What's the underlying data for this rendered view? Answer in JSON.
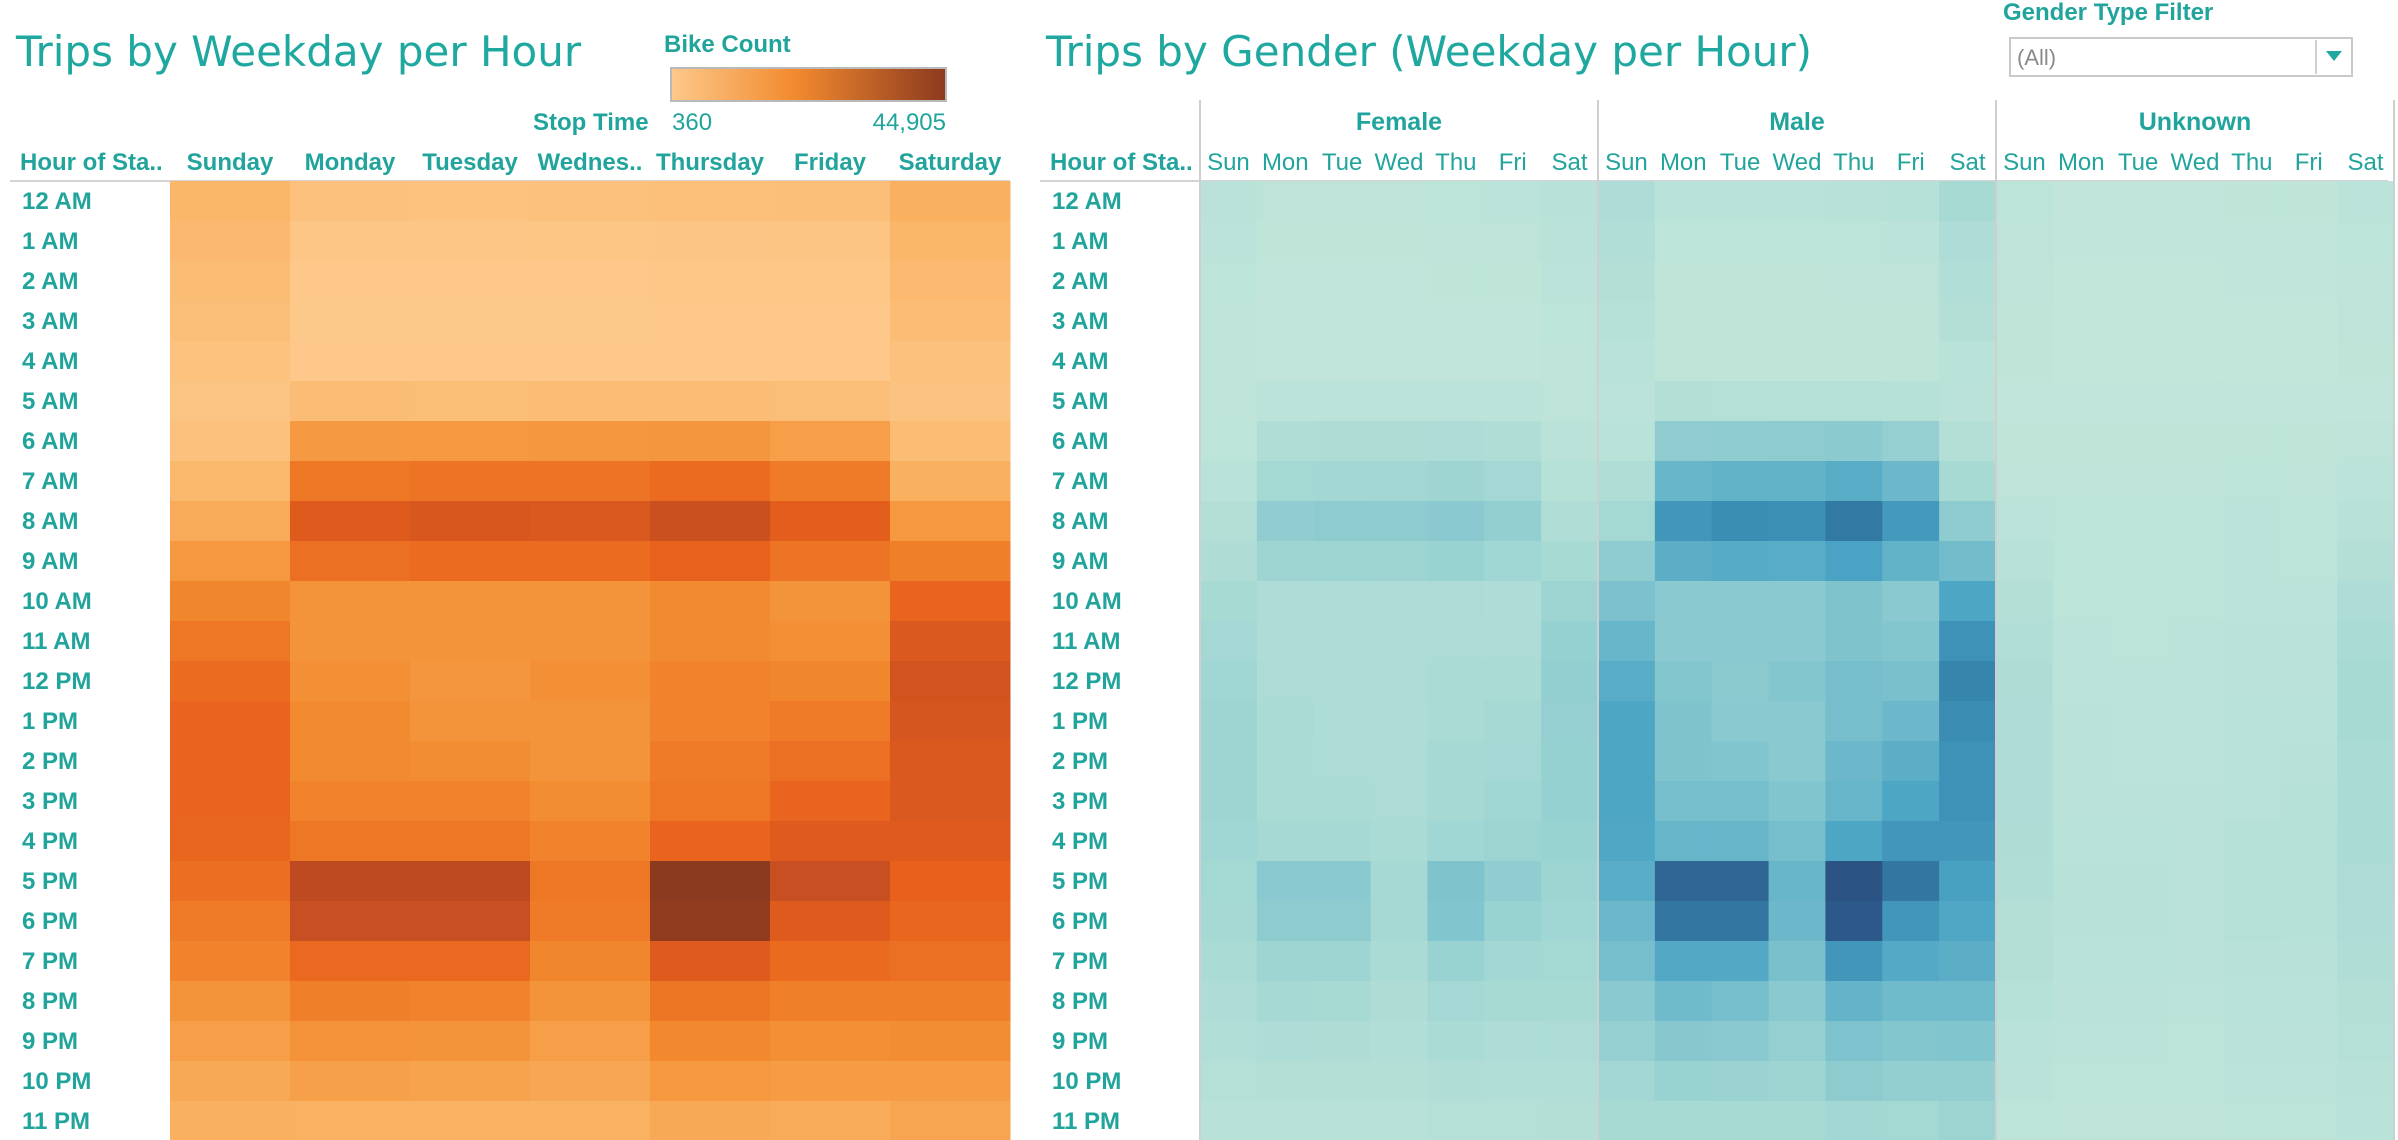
{
  "left_chart": {
    "title": "Trips by Weekday per Hour",
    "legend": {
      "title": "Bike Count",
      "min_label": "360",
      "max_label": "44,905",
      "min_color": "#fdc98b",
      "max_color": "#8c3a1f"
    },
    "column_field_label": "Stop Time",
    "row_header": "Hour of Sta..",
    "column_headers": [
      "Sunday",
      "Monday",
      "Tuesday",
      "Wednes..",
      "Thursday",
      "Friday",
      "Saturday"
    ]
  },
  "right_chart": {
    "title": "Trips by Gender (Weekday per Hour)",
    "row_header": "Hour of Sta..",
    "groups": [
      "Female",
      "Male",
      "Unknown"
    ],
    "day_headers": [
      "Sun",
      "Mon",
      "Tue",
      "Wed",
      "Thu",
      "Fri",
      "Sat"
    ],
    "color_low": "#c2e6da",
    "color_high": "#2b5384"
  },
  "filter": {
    "label": "Gender Type Filter",
    "value": "(All)"
  },
  "colors": {
    "teal_text": "#21a49c",
    "orange_low": "#fdc98b",
    "orange_high": "#8c3a1f"
  },
  "chart_data": [
    {
      "type": "heatmap",
      "title": "Trips by Weekday per Hour",
      "x_label": "Stop Time",
      "y_label": "Hour of Sta..",
      "x": [
        "Sunday",
        "Monday",
        "Tuesday",
        "Wednes..",
        "Thursday",
        "Friday",
        "Saturday"
      ],
      "y": [
        "12 AM",
        "1 AM",
        "2 AM",
        "3 AM",
        "4 AM",
        "5 AM",
        "6 AM",
        "7 AM",
        "8 AM",
        "9 AM",
        "10 AM",
        "11 AM",
        "12 PM",
        "1 PM",
        "2 PM",
        "3 PM",
        "4 PM",
        "5 PM",
        "6 PM",
        "7 PM",
        "8 PM",
        "9 PM",
        "10 PM",
        "11 PM"
      ],
      "color_legend": "Bike Count",
      "color_range": [
        360,
        44905
      ],
      "values": [
        [
          6500,
          2800,
          2600,
          2900,
          3300,
          3600,
          8000
        ],
        [
          5500,
          1300,
          1200,
          1400,
          1500,
          1700,
          6200
        ],
        [
          4600,
          800,
          700,
          800,
          900,
          1000,
          5200
        ],
        [
          3800,
          500,
          450,
          500,
          560,
          620,
          4300
        ],
        [
          2600,
          700,
          650,
          700,
          720,
          780,
          2900
        ],
        [
          2000,
          4200,
          4000,
          4100,
          4100,
          3800,
          2300
        ],
        [
          2800,
          13500,
          14000,
          14200,
          14500,
          12500,
          4500
        ],
        [
          5800,
          22000,
          23000,
          23000,
          25000,
          21000,
          8000
        ],
        [
          9500,
          30000,
          31500,
          31000,
          34500,
          29000,
          14000
        ],
        [
          14000,
          24000,
          25000,
          25000,
          27500,
          23000,
          20000
        ],
        [
          18000,
          15000,
          15000,
          15000,
          17000,
          15000,
          27000
        ],
        [
          22000,
          15000,
          15000,
          15000,
          17000,
          16000,
          31000
        ],
        [
          25000,
          16000,
          14500,
          16000,
          19000,
          18000,
          33000
        ],
        [
          27000,
          17000,
          15000,
          15000,
          19000,
          21000,
          32000
        ],
        [
          27000,
          17000,
          16500,
          15000,
          21000,
          24000,
          31000
        ],
        [
          27000,
          19000,
          19000,
          16500,
          22000,
          27000,
          31000
        ],
        [
          26500,
          22000,
          22000,
          19000,
          27000,
          30000,
          30000
        ],
        [
          24500,
          37000,
          37000,
          22000,
          44905,
          35000,
          28000
        ],
        [
          21000,
          35000,
          35000,
          21000,
          44000,
          30000,
          26500
        ],
        [
          19000,
          26000,
          26000,
          18000,
          30000,
          25500,
          24000
        ],
        [
          15000,
          20000,
          19000,
          15000,
          22500,
          20000,
          20000
        ],
        [
          12500,
          15500,
          15000,
          12500,
          17500,
          16000,
          16500
        ],
        [
          10000,
          12000,
          11500,
          10500,
          14000,
          13000,
          13000
        ],
        [
          8000,
          7800,
          7800,
          7700,
          10000,
          9500,
          11000
        ]
      ]
    },
    {
      "type": "heatmap",
      "title": "Trips by Gender (Weekday per Hour)",
      "y_label": "Hour of Sta..",
      "groups": [
        "Female",
        "Male",
        "Unknown"
      ],
      "x": [
        "Sun",
        "Mon",
        "Tue",
        "Wed",
        "Thu",
        "Fri",
        "Sat"
      ],
      "y": [
        "12 AM",
        "1 AM",
        "2 AM",
        "3 AM",
        "4 AM",
        "5 AM",
        "6 AM",
        "7 AM",
        "8 AM",
        "9 AM",
        "10 AM",
        "11 AM",
        "12 PM",
        "1 PM",
        "2 PM",
        "3 PM",
        "4 PM",
        "5 PM",
        "6 PM",
        "7 PM",
        "8 PM",
        "9 PM",
        "10 PM",
        "11 PM"
      ],
      "values": {
        "Female": [
          [
            0.06,
            0.03,
            0.03,
            0.03,
            0.04,
            0.05,
            0.08
          ],
          [
            0.05,
            0.02,
            0.02,
            0.02,
            0.03,
            0.03,
            0.06
          ],
          [
            0.04,
            0.01,
            0.01,
            0.01,
            0.02,
            0.02,
            0.05
          ],
          [
            0.03,
            0.01,
            0.01,
            0.01,
            0.01,
            0.01,
            0.04
          ],
          [
            0.03,
            0.01,
            0.01,
            0.01,
            0.01,
            0.01,
            0.03
          ],
          [
            0.03,
            0.05,
            0.05,
            0.05,
            0.05,
            0.05,
            0.03
          ],
          [
            0.04,
            0.14,
            0.15,
            0.15,
            0.16,
            0.14,
            0.06
          ],
          [
            0.07,
            0.24,
            0.25,
            0.25,
            0.27,
            0.23,
            0.09
          ],
          [
            0.11,
            0.34,
            0.36,
            0.35,
            0.38,
            0.33,
            0.14
          ],
          [
            0.15,
            0.27,
            0.28,
            0.27,
            0.3,
            0.26,
            0.2
          ],
          [
            0.2,
            0.16,
            0.16,
            0.16,
            0.17,
            0.16,
            0.27
          ],
          [
            0.23,
            0.16,
            0.16,
            0.16,
            0.17,
            0.17,
            0.31
          ],
          [
            0.26,
            0.17,
            0.16,
            0.17,
            0.19,
            0.19,
            0.33
          ],
          [
            0.27,
            0.18,
            0.16,
            0.16,
            0.19,
            0.21,
            0.32
          ],
          [
            0.27,
            0.18,
            0.17,
            0.16,
            0.21,
            0.23,
            0.31
          ],
          [
            0.27,
            0.19,
            0.19,
            0.17,
            0.22,
            0.26,
            0.31
          ],
          [
            0.26,
            0.22,
            0.22,
            0.19,
            0.26,
            0.28,
            0.3
          ],
          [
            0.24,
            0.38,
            0.38,
            0.22,
            0.43,
            0.34,
            0.28
          ],
          [
            0.21,
            0.36,
            0.36,
            0.21,
            0.42,
            0.3,
            0.26
          ],
          [
            0.19,
            0.27,
            0.27,
            0.18,
            0.3,
            0.25,
            0.24
          ],
          [
            0.16,
            0.21,
            0.2,
            0.15,
            0.23,
            0.2,
            0.2
          ],
          [
            0.13,
            0.16,
            0.15,
            0.13,
            0.18,
            0.16,
            0.17
          ],
          [
            0.1,
            0.12,
            0.12,
            0.11,
            0.14,
            0.13,
            0.13
          ],
          [
            0.08,
            0.08,
            0.08,
            0.08,
            0.1,
            0.1,
            0.11
          ]
        ],
        "Male": [
          [
            0.16,
            0.07,
            0.07,
            0.07,
            0.08,
            0.09,
            0.2
          ],
          [
            0.13,
            0.04,
            0.04,
            0.04,
            0.04,
            0.05,
            0.16
          ],
          [
            0.11,
            0.02,
            0.02,
            0.02,
            0.03,
            0.03,
            0.13
          ],
          [
            0.09,
            0.02,
            0.02,
            0.02,
            0.02,
            0.02,
            0.11
          ],
          [
            0.07,
            0.02,
            0.02,
            0.02,
            0.02,
            0.02,
            0.07
          ],
          [
            0.05,
            0.11,
            0.1,
            0.1,
            0.1,
            0.09,
            0.06
          ],
          [
            0.07,
            0.34,
            0.35,
            0.36,
            0.37,
            0.32,
            0.11
          ],
          [
            0.14,
            0.55,
            0.58,
            0.58,
            0.63,
            0.53,
            0.2
          ],
          [
            0.24,
            0.76,
            0.8,
            0.79,
            0.88,
            0.74,
            0.35
          ],
          [
            0.35,
            0.61,
            0.64,
            0.63,
            0.7,
            0.58,
            0.5
          ],
          [
            0.45,
            0.38,
            0.38,
            0.38,
            0.43,
            0.38,
            0.68
          ],
          [
            0.55,
            0.38,
            0.38,
            0.38,
            0.43,
            0.41,
            0.78
          ],
          [
            0.63,
            0.41,
            0.37,
            0.41,
            0.48,
            0.46,
            0.84
          ],
          [
            0.68,
            0.43,
            0.38,
            0.38,
            0.48,
            0.53,
            0.81
          ],
          [
            0.68,
            0.43,
            0.42,
            0.38,
            0.53,
            0.61,
            0.78
          ],
          [
            0.68,
            0.48,
            0.48,
            0.42,
            0.56,
            0.68,
            0.78
          ],
          [
            0.67,
            0.56,
            0.56,
            0.48,
            0.68,
            0.76,
            0.76
          ],
          [
            0.62,
            0.94,
            0.94,
            0.56,
            1.0,
            0.89,
            0.71
          ],
          [
            0.53,
            0.89,
            0.89,
            0.53,
            0.98,
            0.76,
            0.67
          ],
          [
            0.48,
            0.66,
            0.66,
            0.46,
            0.76,
            0.65,
            0.61
          ],
          [
            0.38,
            0.51,
            0.48,
            0.38,
            0.57,
            0.51,
            0.51
          ],
          [
            0.32,
            0.39,
            0.38,
            0.32,
            0.44,
            0.41,
            0.42
          ],
          [
            0.25,
            0.3,
            0.29,
            0.27,
            0.36,
            0.33,
            0.33
          ],
          [
            0.2,
            0.2,
            0.2,
            0.2,
            0.25,
            0.24,
            0.28
          ]
        ],
        "Unknown": [
          [
            0.04,
            0.01,
            0.01,
            0.01,
            0.02,
            0.02,
            0.05
          ],
          [
            0.03,
            0.01,
            0.01,
            0.01,
            0.01,
            0.01,
            0.04
          ],
          [
            0.03,
            0.0,
            0.0,
            0.0,
            0.01,
            0.01,
            0.03
          ],
          [
            0.02,
            0.0,
            0.0,
            0.0,
            0.0,
            0.0,
            0.03
          ],
          [
            0.02,
            0.0,
            0.0,
            0.0,
            0.0,
            0.0,
            0.02
          ],
          [
            0.01,
            0.01,
            0.01,
            0.01,
            0.01,
            0.01,
            0.01
          ],
          [
            0.02,
            0.02,
            0.02,
            0.02,
            0.02,
            0.02,
            0.03
          ],
          [
            0.03,
            0.03,
            0.03,
            0.03,
            0.04,
            0.03,
            0.05
          ],
          [
            0.05,
            0.04,
            0.04,
            0.04,
            0.05,
            0.04,
            0.08
          ],
          [
            0.08,
            0.04,
            0.04,
            0.04,
            0.05,
            0.04,
            0.12
          ],
          [
            0.11,
            0.04,
            0.04,
            0.04,
            0.05,
            0.05,
            0.16
          ],
          [
            0.13,
            0.05,
            0.04,
            0.05,
            0.06,
            0.06,
            0.19
          ],
          [
            0.15,
            0.05,
            0.05,
            0.05,
            0.06,
            0.06,
            0.2
          ],
          [
            0.16,
            0.06,
            0.05,
            0.05,
            0.07,
            0.07,
            0.2
          ],
          [
            0.16,
            0.06,
            0.05,
            0.05,
            0.07,
            0.08,
            0.19
          ],
          [
            0.16,
            0.06,
            0.06,
            0.06,
            0.07,
            0.09,
            0.19
          ],
          [
            0.15,
            0.07,
            0.07,
            0.06,
            0.09,
            0.1,
            0.18
          ],
          [
            0.14,
            0.08,
            0.08,
            0.06,
            0.1,
            0.1,
            0.17
          ],
          [
            0.12,
            0.08,
            0.08,
            0.06,
            0.1,
            0.09,
            0.16
          ],
          [
            0.11,
            0.07,
            0.07,
            0.06,
            0.08,
            0.08,
            0.14
          ],
          [
            0.09,
            0.06,
            0.06,
            0.05,
            0.07,
            0.07,
            0.12
          ],
          [
            0.07,
            0.05,
            0.05,
            0.04,
            0.06,
            0.06,
            0.1
          ],
          [
            0.06,
            0.04,
            0.04,
            0.04,
            0.05,
            0.05,
            0.08
          ],
          [
            0.04,
            0.03,
            0.03,
            0.03,
            0.04,
            0.04,
            0.07
          ]
        ]
      }
    }
  ]
}
